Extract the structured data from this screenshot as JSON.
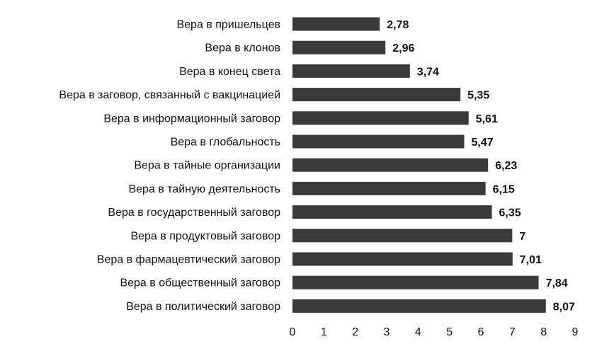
{
  "chart_data": {
    "type": "bar",
    "orientation": "horizontal",
    "title": "",
    "xlabel": "",
    "ylabel": "",
    "categories": [
      "Вера в пришельцев",
      "Вера в клонов",
      "Вера в конец света",
      "Вера в заговор, связанный с вакцинацией",
      "Вера в информационный заговор",
      "Вера в глобальность",
      "Вера в тайные организации",
      "Вера в тайную деятельность",
      "Вера в государственный заговор",
      "Вера в продуктовый заговор",
      "Вера в фармацевтический заговор",
      "Вера в общественный заговор",
      "Вера в политический заговор"
    ],
    "values": [
      2.78,
      2.96,
      3.74,
      5.35,
      5.61,
      5.47,
      6.23,
      6.15,
      6.35,
      7,
      7.01,
      7.84,
      8.07
    ],
    "value_labels": [
      "2,78",
      "2,96",
      "3,74",
      "5,35",
      "5,61",
      "5,47",
      "6,23",
      "6,15",
      "6,35",
      "7",
      "7,01",
      "7,84",
      "8,07"
    ],
    "xlim": [
      0,
      9
    ],
    "xticks": [
      "0",
      "1",
      "2",
      "3",
      "4",
      "5",
      "6",
      "7",
      "8",
      "9"
    ],
    "bar_color": "#3a3a3a",
    "grid": false,
    "legend": "none"
  }
}
